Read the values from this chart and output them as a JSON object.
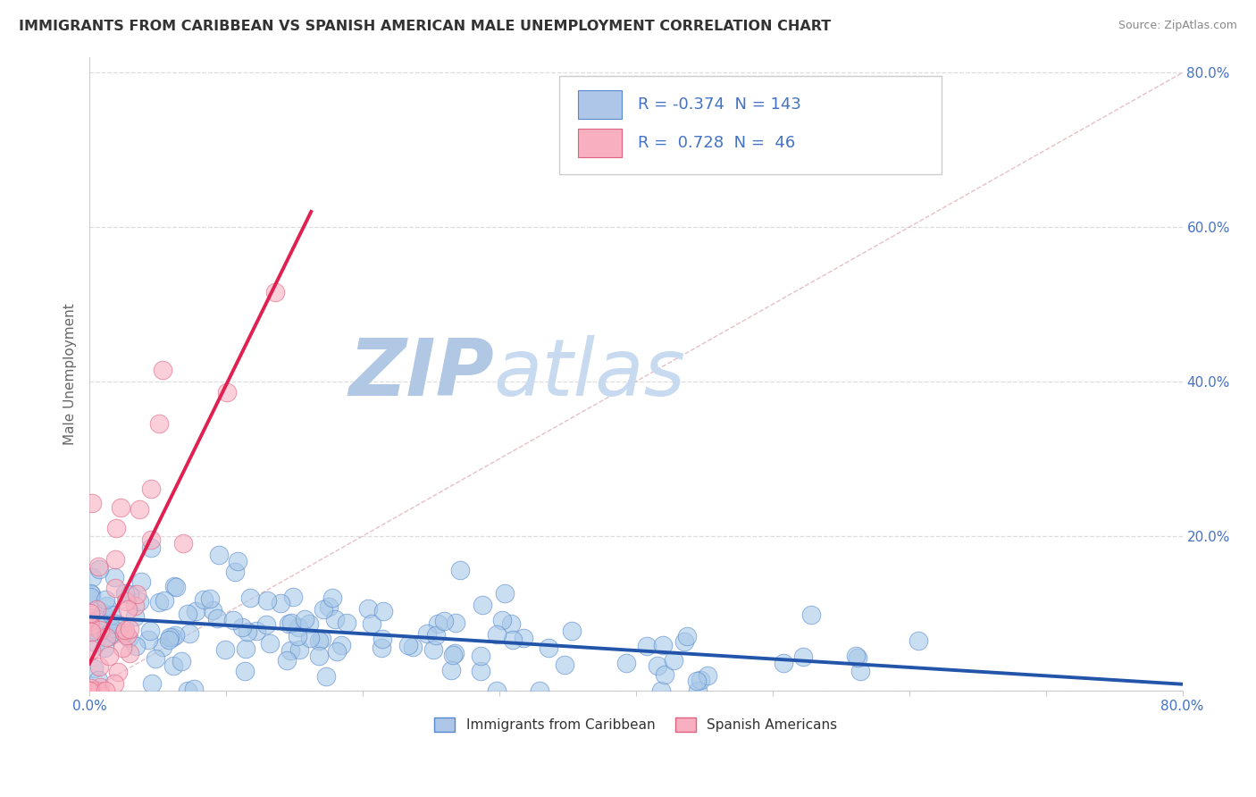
{
  "title": "IMMIGRANTS FROM CARIBBEAN VS SPANISH AMERICAN MALE UNEMPLOYMENT CORRELATION CHART",
  "source": "Source: ZipAtlas.com",
  "ylabel": "Male Unemployment",
  "xlim": [
    0.0,
    0.8
  ],
  "ylim": [
    0.0,
    0.82
  ],
  "blue_R": -0.374,
  "blue_N": 143,
  "pink_R": 0.728,
  "pink_N": 46,
  "blue_color": "#a8c8e8",
  "blue_edge": "#5588cc",
  "pink_color": "#f8b0c0",
  "pink_edge": "#e06080",
  "trendline_blue_color": "#2255aa",
  "trendline_pink_color": "#e02050",
  "ref_line_color": "#e0b0b8",
  "watermark_zip_color": "#b8cce8",
  "watermark_atlas_color": "#c8d8f0",
  "background_color": "#ffffff",
  "grid_color": "#dddddd",
  "title_color": "#333333",
  "title_fontsize": 11.5,
  "axis_label_color": "#666666",
  "tick_color": "#4472c4",
  "blue_seed": 42,
  "pink_seed": 99
}
